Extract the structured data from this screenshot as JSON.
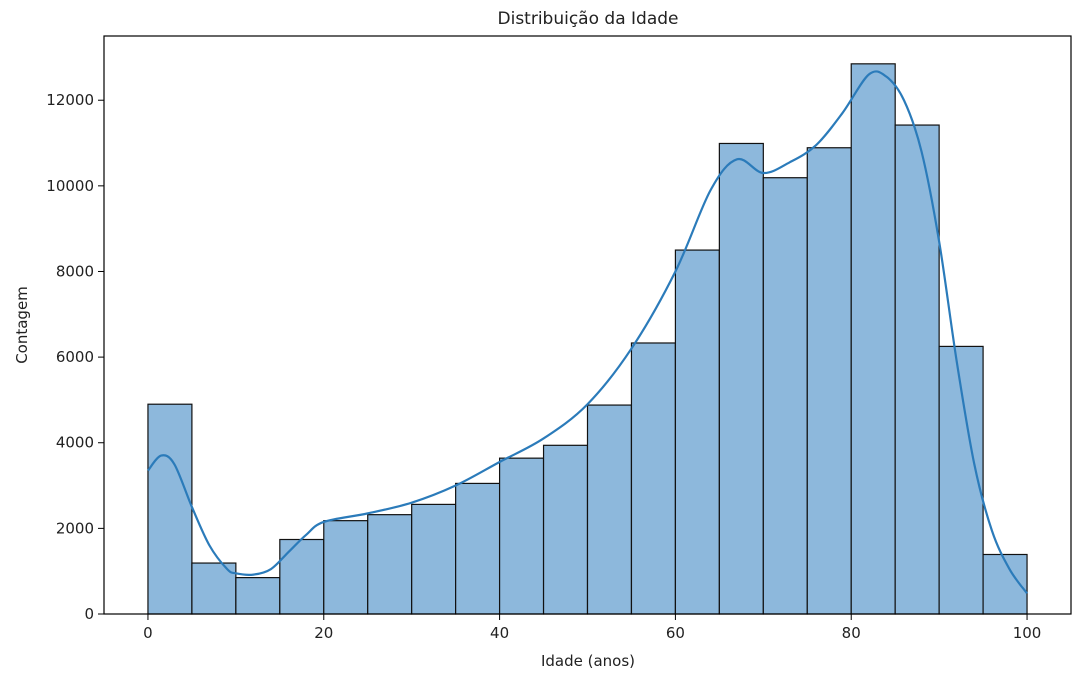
{
  "chart_data": {
    "type": "bar",
    "title": "Distribuição da Idade",
    "xlabel": "Idade (anos)",
    "ylabel": "Contagem",
    "xlim": [
      -5,
      105
    ],
    "ylim": [
      0,
      13500
    ],
    "xticks": [
      0,
      20,
      40,
      60,
      80,
      100
    ],
    "yticks": [
      0,
      2000,
      4000,
      6000,
      8000,
      10000,
      12000
    ],
    "grid": false,
    "bin_width": 5,
    "bins": [
      {
        "x0": 0,
        "count": 4900
      },
      {
        "x0": 5,
        "count": 1190
      },
      {
        "x0": 10,
        "count": 850
      },
      {
        "x0": 15,
        "count": 1740
      },
      {
        "x0": 20,
        "count": 2180
      },
      {
        "x0": 25,
        "count": 2320
      },
      {
        "x0": 30,
        "count": 2560
      },
      {
        "x0": 35,
        "count": 3050
      },
      {
        "x0": 40,
        "count": 3640
      },
      {
        "x0": 45,
        "count": 3940
      },
      {
        "x0": 50,
        "count": 4880
      },
      {
        "x0": 55,
        "count": 6330
      },
      {
        "x0": 60,
        "count": 8500
      },
      {
        "x0": 65,
        "count": 10990
      },
      {
        "x0": 70,
        "count": 10190
      },
      {
        "x0": 75,
        "count": 10890
      },
      {
        "x0": 80,
        "count": 12850
      },
      {
        "x0": 85,
        "count": 11420
      },
      {
        "x0": 90,
        "count": 6250
      },
      {
        "x0": 95,
        "count": 1390
      }
    ],
    "kde": {
      "x": [
        0,
        1.5,
        3,
        5,
        7,
        9,
        10,
        12,
        14,
        16,
        18,
        20,
        25,
        30,
        35,
        40,
        45,
        50,
        55,
        60,
        64,
        67,
        70,
        73,
        76,
        79,
        82,
        84,
        86,
        88,
        90,
        92,
        94,
        96,
        98,
        100
      ],
      "y": [
        3350,
        3700,
        3500,
        2500,
        1600,
        1050,
        950,
        920,
        1050,
        1450,
        1850,
        2150,
        2350,
        2600,
        3000,
        3550,
        4100,
        4900,
        6200,
        8000,
        9900,
        10620,
        10300,
        10550,
        10950,
        11700,
        12600,
        12550,
        12000,
        10800,
        8700,
        5900,
        3500,
        1950,
        1050,
        480
      ]
    },
    "colors": {
      "bar_fill": "#8db8dc",
      "bar_edge": "#111111",
      "kde_line": "#2b7bba",
      "axis": "#000000"
    }
  }
}
